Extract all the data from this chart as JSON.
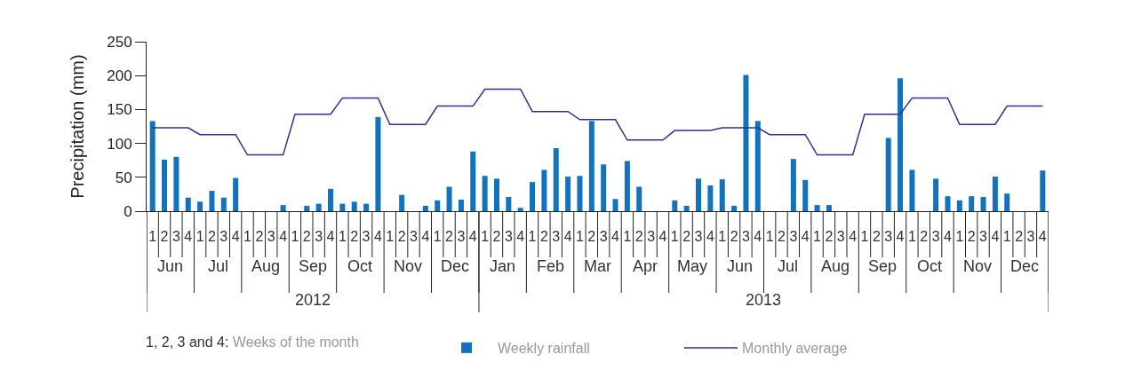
{
  "chart_data": {
    "type": "bar",
    "ylabel": "Precipitation (mm)",
    "categories": [
      "1",
      "2",
      "3",
      "4",
      "1",
      "2",
      "3",
      "4",
      "1",
      "2",
      "3",
      "4",
      "1",
      "2",
      "3",
      "4",
      "1",
      "2",
      "3",
      "4",
      "1",
      "2",
      "3",
      "4",
      "1",
      "2",
      "3",
      "4",
      "1",
      "2",
      "3",
      "4",
      "1",
      "2",
      "3",
      "4",
      "1",
      "2",
      "3",
      "4",
      "1",
      "2",
      "3",
      "4",
      "1",
      "2",
      "3",
      "4",
      "1",
      "2",
      "3",
      "4",
      "1",
      "2",
      "3",
      "4",
      "1",
      "2",
      "3",
      "4",
      "1",
      "2",
      "3",
      "4",
      "1",
      "2",
      "3",
      "4",
      "1",
      "2",
      "3",
      "4",
      "1",
      "2",
      "3",
      "4"
    ],
    "series": [
      {
        "name": "Weekly rainfall",
        "color": "#1172bd",
        "values": [
          133,
          76,
          80,
          20,
          14,
          30,
          20,
          49,
          null,
          null,
          null,
          9,
          null,
          8,
          11,
          33,
          11,
          14,
          11,
          139,
          null,
          24,
          null,
          8,
          16,
          36,
          17,
          88,
          52,
          48,
          21,
          5,
          43,
          61,
          93,
          51,
          52,
          133,
          69,
          18,
          74,
          36,
          null,
          null,
          16,
          8,
          48,
          38,
          47,
          8,
          201,
          133,
          null,
          null,
          77,
          46,
          9,
          9,
          null,
          null,
          null,
          null,
          108,
          196,
          61,
          null,
          48,
          22,
          16,
          22,
          21,
          51,
          26,
          null,
          null,
          60
        ]
      },
      {
        "name": "Monthly average",
        "type": "line",
        "color": "#2e3192",
        "values": [
          123,
          123,
          123,
          123,
          113,
          113,
          113,
          113,
          83,
          83,
          83,
          83,
          143,
          143,
          143,
          143,
          167,
          167,
          167,
          167,
          128,
          128,
          128,
          128,
          155,
          155,
          155,
          155,
          180,
          180,
          180,
          180,
          147,
          147,
          147,
          147,
          135,
          135,
          135,
          135,
          105,
          105,
          105,
          105,
          119,
          119,
          119,
          119,
          123,
          123,
          123,
          123,
          113,
          113,
          113,
          113,
          83,
          83,
          83,
          83,
          143,
          143,
          143,
          143,
          167,
          167,
          167,
          167,
          128,
          128,
          128,
          128,
          155,
          155,
          155,
          155
        ]
      }
    ],
    "ylim": [
      0,
      250
    ],
    "yticks": [
      0,
      50,
      100,
      150,
      200,
      250
    ],
    "legend": "bottom",
    "marker": "none",
    "line_style": "solid",
    "annotations": [
      "1, 2, 3 and 4: Weeks of the month",
      "Jun",
      "Jul",
      "Aug",
      "Sep",
      "Oct",
      "Nov",
      "Dec",
      "Jan",
      "Feb",
      "Mar",
      "Apr",
      "May",
      "Jun",
      "Jul",
      "Aug",
      "Sep",
      "Oct",
      "Nov",
      "Dec",
      "2012",
      "2013"
    ]
  }
}
